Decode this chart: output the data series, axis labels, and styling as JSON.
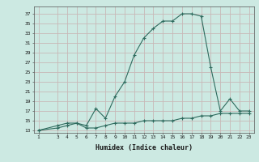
{
  "x_main": [
    1,
    3,
    4,
    5,
    6,
    7,
    8,
    9,
    10,
    11,
    12,
    13,
    14,
    15,
    16,
    17,
    18,
    19,
    20,
    21,
    22,
    23
  ],
  "y_main": [
    13,
    14,
    14.5,
    14.5,
    14,
    17.5,
    15.5,
    20,
    23,
    28.5,
    32,
    34,
    35.5,
    35.5,
    37,
    37,
    36.5,
    26,
    17,
    19.5,
    17,
    17
  ],
  "x_flat": [
    1,
    3,
    4,
    5,
    6,
    7,
    8,
    9,
    10,
    11,
    12,
    13,
    14,
    15,
    16,
    17,
    18,
    19,
    20,
    21,
    22,
    23
  ],
  "y_flat": [
    13,
    13.5,
    14,
    14.5,
    13.5,
    13.5,
    14,
    14.5,
    14.5,
    14.5,
    15,
    15,
    15,
    15,
    15.5,
    15.5,
    16,
    16,
    16.5,
    16.5,
    16.5,
    16.5
  ],
  "line_color": "#2e6b5e",
  "marker": "+",
  "bg_color": "#cce9e2",
  "grid_color": "#c8b8b8",
  "xlabel": "Humidex (Indice chaleur)",
  "yticks": [
    13,
    15,
    17,
    19,
    21,
    23,
    25,
    27,
    29,
    31,
    33,
    35,
    37
  ],
  "xticks": [
    1,
    3,
    4,
    5,
    6,
    7,
    8,
    9,
    10,
    11,
    12,
    13,
    14,
    15,
    16,
    17,
    18,
    19,
    20,
    21,
    22,
    23
  ],
  "xlim": [
    0.5,
    23.5
  ],
  "ylim": [
    12.5,
    38.5
  ]
}
